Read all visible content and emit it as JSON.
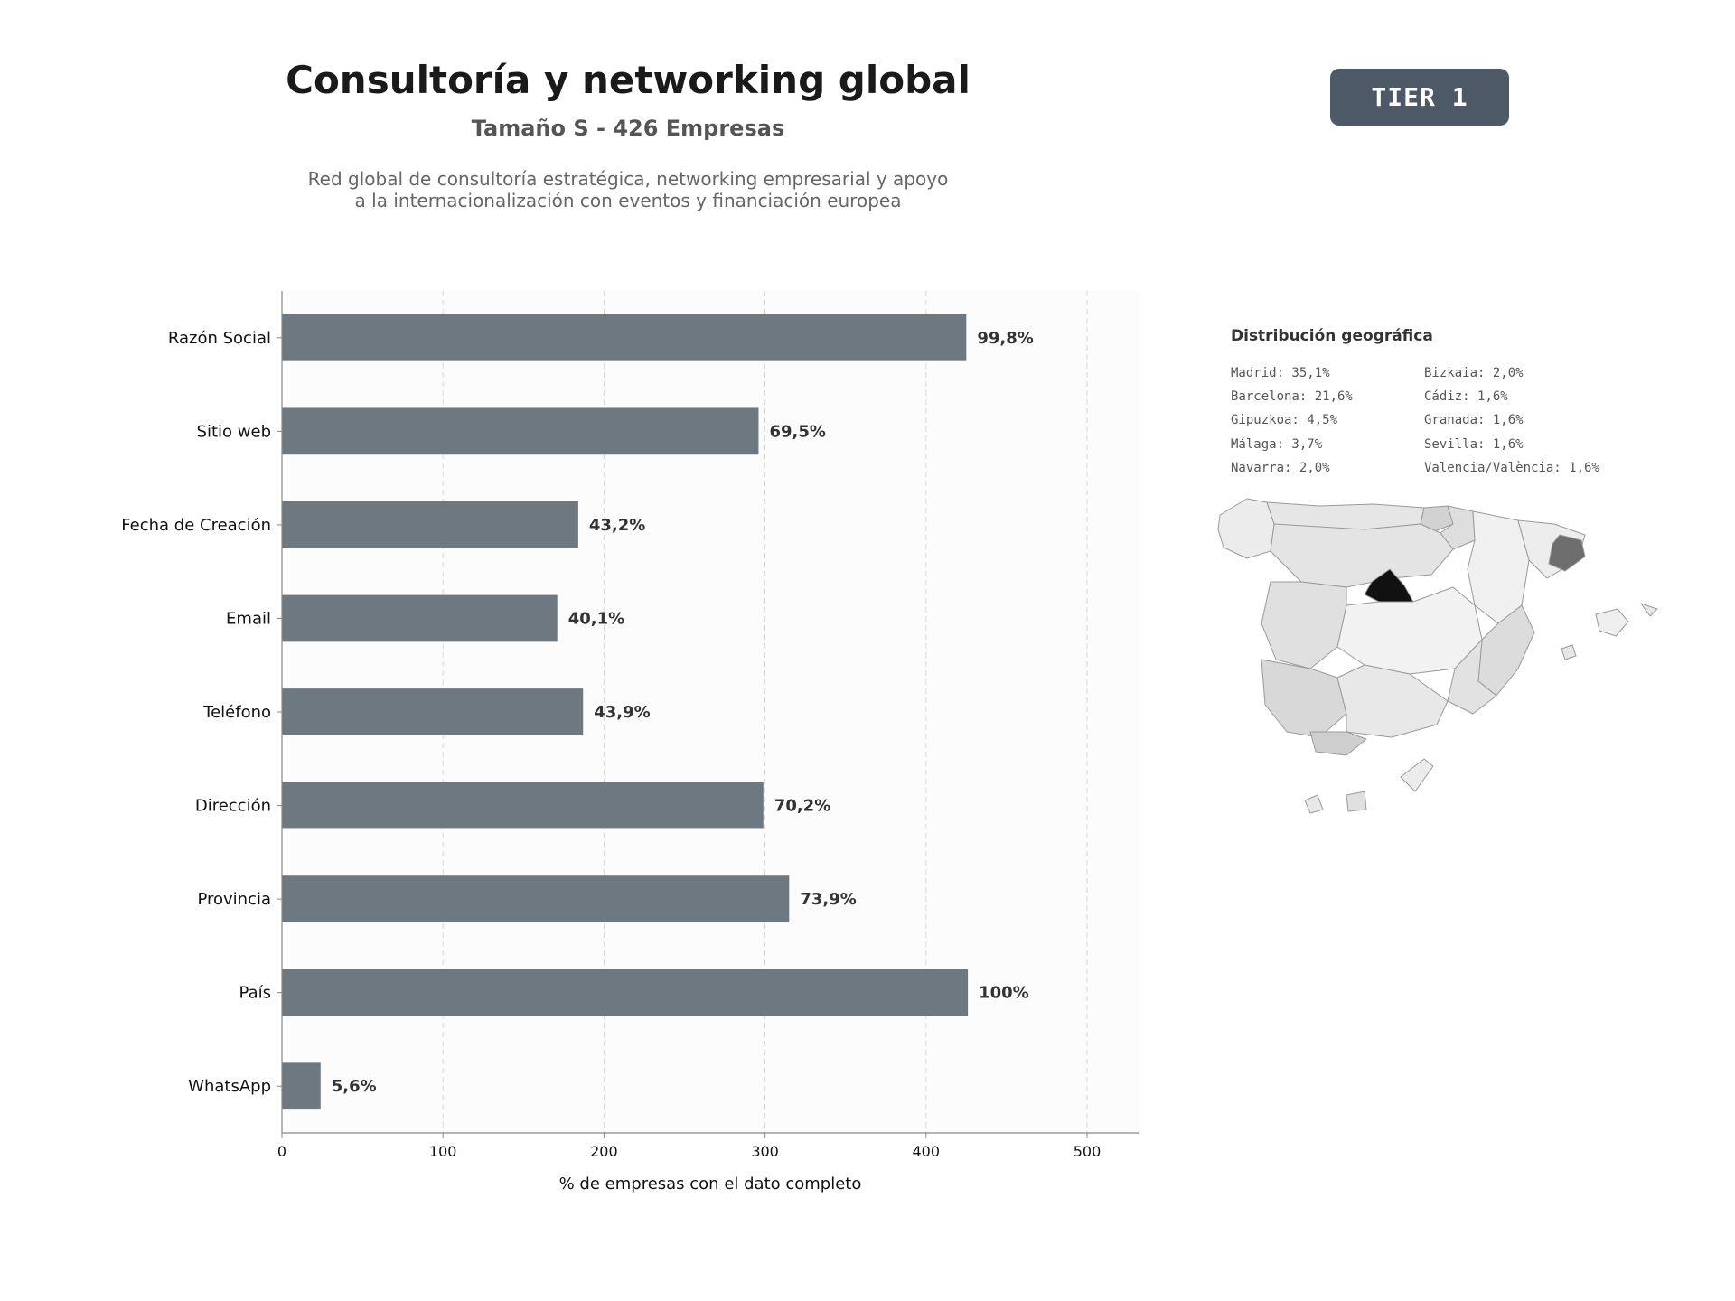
{
  "header": {
    "title": "Consultoría y networking global",
    "subtitle": "Tamaño S - 426 Empresas",
    "description": [
      "Red global de consultoría estratégica, networking empresarial y apoyo",
      "a la internacionalización con eventos y financiación europea"
    ],
    "badge": "TIER 1"
  },
  "colors": {
    "bar": "#6e7881",
    "badge": "#4d5966",
    "plot_background": "#fcfcfc"
  },
  "chart_data": {
    "type": "bar",
    "orientation": "horizontal",
    "categories": [
      "Razón Social",
      "Sitio web",
      "Fecha de Creación",
      "Email",
      "Teléfono",
      "Dirección",
      "Provincia",
      "País",
      "WhatsApp"
    ],
    "values": [
      425,
      296,
      184,
      171,
      187,
      299,
      315,
      426,
      24
    ],
    "data_labels": [
      "99,8%",
      "69,5%",
      "43,2%",
      "40,1%",
      "43,9%",
      "70,2%",
      "73,9%",
      "100%",
      "5,6%"
    ],
    "xlabel": "% de empresas con el dato completo",
    "xticks": [
      0,
      100,
      200,
      300,
      400,
      500
    ],
    "xlim": [
      0,
      532
    ],
    "grid": "vertical dashed"
  },
  "geo": {
    "title": "Distribución geográfica",
    "col_a": [
      "Madrid: 35,1%",
      "Barcelona: 21,6%",
      "Gipuzkoa: 4,5%",
      "Málaga: 3,7%",
      "Navarra: 2,0%"
    ],
    "col_b": [
      "Bizkaia: 2,0%",
      "Cádiz: 1,6%",
      "Granada: 1,6%",
      "Sevilla: 1,6%",
      "Valencia/València: 1,6%"
    ]
  }
}
